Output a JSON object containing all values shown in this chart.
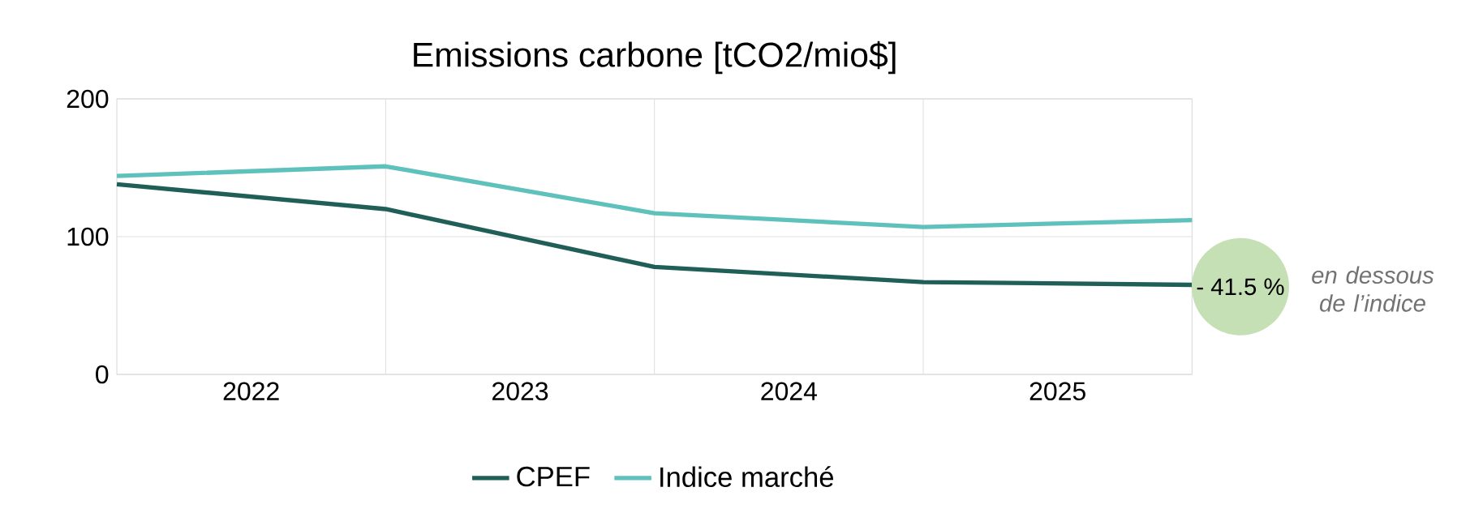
{
  "chart_data": {
    "type": "line",
    "title": "Emissions carbone [tCO2/mio$]",
    "x": [
      2021.5,
      2022.5,
      2023.5,
      2024.5,
      2025.5
    ],
    "series": [
      {
        "name": "CPEF",
        "color": "#1f5f57",
        "values": [
          138,
          120,
          78,
          67,
          65
        ]
      },
      {
        "name": "Indice marché",
        "color": "#5fc1bc",
        "values": [
          144,
          151,
          117,
          107,
          112
        ]
      }
    ],
    "xlim": [
      2021.5,
      2025.5
    ],
    "xticks": [
      2022,
      {
        "value": 2022.5,
        "label": null
      },
      2023,
      {
        "value": 2023.5,
        "label": null
      },
      2024,
      {
        "value": 2024.5,
        "label": null
      },
      2025
    ],
    "ylim": [
      0,
      200
    ],
    "yticks": [
      0,
      100,
      200
    ],
    "grid": true,
    "legend": "bottom",
    "line_style": "solid",
    "annotations": [
      "- 41.5 %",
      "en dessous de l’indice"
    ]
  }
}
